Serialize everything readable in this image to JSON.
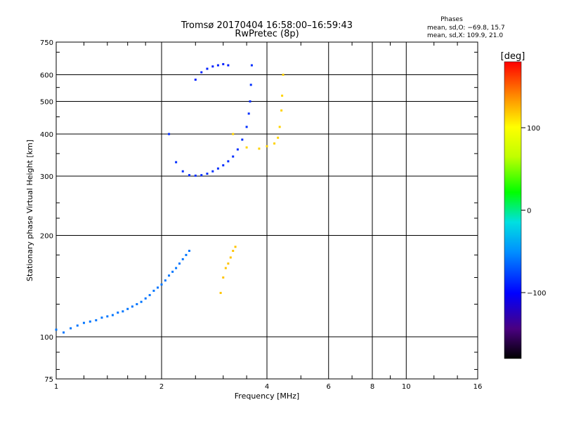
{
  "chart_data": {
    "type": "scatter",
    "title": "Tromsø 20170404 16:58:00–16:59:43",
    "subtitle": "RwPretec (8p)",
    "xlabel": "Frequency [MHz]",
    "ylabel": "Stationary phase Virtual Height [km]",
    "x_scale": "log",
    "y_scale": "log",
    "xlim": [
      1,
      16
    ],
    "ylim": [
      75,
      750
    ],
    "x_ticks": [
      "1",
      "2",
      "4",
      "6",
      "8",
      "10",
      "16"
    ],
    "y_ticks": [
      "75",
      "100",
      "200",
      "300",
      "400",
      "500",
      "600",
      "750"
    ],
    "grid": true,
    "stats": {
      "heading": "Phases",
      "line1": "mean, sd,O: −69.8, 15.7",
      "line2": "mean, sd,X: 109.9, 21.0"
    },
    "colorbar": {
      "label": "[deg]",
      "range": [
        -180,
        180
      ],
      "ticks": [
        "100",
        "0",
        "−100"
      ],
      "tick_values": [
        100,
        0,
        -100
      ],
      "colormap": "rainbow"
    },
    "series": [
      {
        "description": "O-mode E/F1 trace",
        "color_phase": -60,
        "points": [
          [
            1.0,
            105
          ],
          [
            1.05,
            103
          ],
          [
            1.1,
            106
          ],
          [
            1.15,
            108
          ],
          [
            1.2,
            110
          ],
          [
            1.25,
            111
          ],
          [
            1.3,
            112
          ],
          [
            1.35,
            114
          ],
          [
            1.4,
            115
          ],
          [
            1.45,
            116
          ],
          [
            1.5,
            118
          ],
          [
            1.55,
            119
          ],
          [
            1.6,
            121
          ],
          [
            1.65,
            123
          ],
          [
            1.7,
            125
          ],
          [
            1.75,
            127
          ],
          [
            1.8,
            130
          ],
          [
            1.85,
            133
          ],
          [
            1.9,
            137
          ],
          [
            1.95,
            140
          ],
          [
            2.0,
            143
          ],
          [
            2.05,
            147
          ],
          [
            2.1,
            152
          ],
          [
            2.15,
            156
          ],
          [
            2.2,
            160
          ],
          [
            2.25,
            165
          ],
          [
            2.3,
            170
          ],
          [
            2.35,
            175
          ],
          [
            2.4,
            180
          ]
        ]
      },
      {
        "description": "O-mode F2 trace",
        "color_phase": -85,
        "points": [
          [
            2.1,
            400
          ],
          [
            2.2,
            330
          ],
          [
            2.3,
            310
          ],
          [
            2.4,
            302
          ],
          [
            2.5,
            301
          ],
          [
            2.6,
            302
          ],
          [
            2.7,
            305
          ],
          [
            2.8,
            310
          ],
          [
            2.9,
            316
          ],
          [
            3.0,
            323
          ],
          [
            3.1,
            332
          ],
          [
            3.2,
            343
          ],
          [
            3.3,
            360
          ],
          [
            3.4,
            385
          ],
          [
            3.5,
            420
          ],
          [
            3.55,
            460
          ],
          [
            3.58,
            500
          ],
          [
            3.6,
            560
          ],
          [
            3.62,
            640
          ]
        ]
      },
      {
        "description": "X-mode F2 trace",
        "color_phase": 115,
        "points": [
          [
            3.2,
            400
          ],
          [
            3.5,
            365
          ],
          [
            3.8,
            362
          ],
          [
            4.0,
            368
          ],
          [
            4.2,
            375
          ],
          [
            4.3,
            390
          ],
          [
            4.35,
            420
          ],
          [
            4.4,
            470
          ],
          [
            4.42,
            520
          ],
          [
            4.45,
            600
          ]
        ]
      },
      {
        "description": "X-mode E/F1 patch",
        "color_phase": 120,
        "points": [
          [
            2.95,
            135
          ],
          [
            3.0,
            150
          ],
          [
            3.05,
            160
          ],
          [
            3.1,
            165
          ],
          [
            3.15,
            172
          ],
          [
            3.2,
            180
          ],
          [
            3.25,
            185
          ]
        ]
      },
      {
        "description": "Top spread cluster",
        "color_phase": -90,
        "points": [
          [
            2.6,
            610
          ],
          [
            2.7,
            625
          ],
          [
            2.8,
            635
          ],
          [
            2.9,
            640
          ],
          [
            3.0,
            645
          ],
          [
            3.1,
            640
          ],
          [
            2.5,
            580
          ]
        ]
      }
    ]
  }
}
